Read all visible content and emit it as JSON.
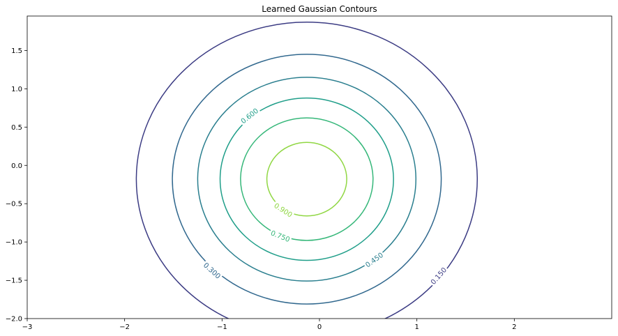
{
  "chart_data": {
    "type": "contour",
    "title": "Learned Gaussian Contours",
    "xlabel": "",
    "ylabel": "",
    "xlim": [
      -3,
      3
    ],
    "ylim": [
      -2,
      1.95
    ],
    "xticks": [
      -3,
      -2,
      -1,
      0,
      1,
      2
    ],
    "xtick_labels": [
      "−3",
      "−2",
      "−1",
      "0",
      "1",
      "2"
    ],
    "yticks": [
      -2.0,
      -1.5,
      -1.0,
      -0.5,
      0.0,
      0.5,
      1.0,
      1.5
    ],
    "ytick_labels": [
      "−2.0",
      "−1.5",
      "−1.0",
      "−0.5",
      "0.0",
      "0.5",
      "1.0",
      "1.5"
    ],
    "grid": false,
    "center": [
      -0.13,
      -0.18
    ],
    "levels": [
      {
        "level": 0.15,
        "label": "0.150",
        "rx": 1.75,
        "ry": 2.05,
        "color": "#3b3b83",
        "label_at": [
          1.22,
          -1.44
        ]
      },
      {
        "level": 0.3,
        "label": "0.300",
        "rx": 1.38,
        "ry": 1.63,
        "color": "#31688e",
        "label_at": [
          -1.1,
          -1.37
        ]
      },
      {
        "level": 0.45,
        "label": "0.450",
        "rx": 1.12,
        "ry": 1.33,
        "color": "#297e8e",
        "label_at": [
          0.56,
          -1.23
        ]
      },
      {
        "level": 0.6,
        "label": "0.600",
        "rx": 0.89,
        "ry": 1.06,
        "color": "#1f9e89",
        "label_at": [
          -0.72,
          0.65
        ]
      },
      {
        "level": 0.75,
        "label": "0.750",
        "rx": 0.68,
        "ry": 0.8,
        "color": "#35b779",
        "label_at": [
          -0.4,
          -0.92
        ]
      },
      {
        "level": 0.9,
        "label": "0.900",
        "rx": 0.41,
        "ry": 0.48,
        "color": "#90d743",
        "label_at": [
          -0.37,
          -0.58
        ]
      }
    ]
  }
}
